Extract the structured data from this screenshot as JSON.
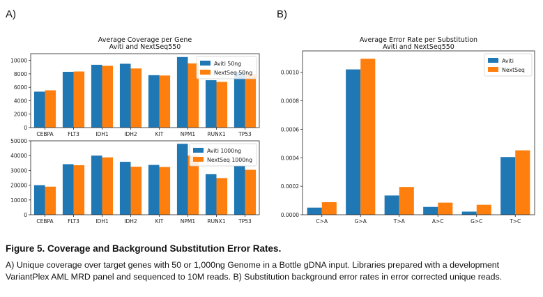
{
  "panels": {
    "a_label": "A)",
    "b_label": "B)"
  },
  "colors": {
    "aviti": "#1f77b4",
    "nextseq": "#ff7f0e"
  },
  "chart_data": [
    {
      "type": "bar",
      "title": "Average Coverage per Gene",
      "subtitle": "Aviti and NextSeq550",
      "categories": [
        "CEBPA",
        "FLT3",
        "IDH1",
        "IDH2",
        "KIT",
        "NPM1",
        "RUNX1",
        "TP53"
      ],
      "series": [
        {
          "name": "Aviti 50ng",
          "values": [
            5350,
            8300,
            9350,
            9500,
            7800,
            10500,
            7050,
            8300
          ]
        },
        {
          "name": "NextSeq 50ng",
          "values": [
            5550,
            8350,
            9200,
            8800,
            7750,
            9550,
            6800,
            7950
          ]
        }
      ],
      "ylim": [
        0,
        11000
      ],
      "yticks": [
        0,
        2000,
        4000,
        6000,
        8000,
        10000
      ],
      "legend": "top-right"
    },
    {
      "type": "bar",
      "categories": [
        "CEBPA",
        "FLT3",
        "IDH1",
        "IDH2",
        "KIT",
        "NPM1",
        "RUNX1",
        "TP53"
      ],
      "series": [
        {
          "name": "Aviti 1000ng",
          "values": [
            20000,
            34200,
            40000,
            35800,
            33700,
            48000,
            27400,
            33000
          ]
        },
        {
          "name": "NextSeq 1000ng",
          "values": [
            19000,
            33500,
            38800,
            32500,
            32300,
            40000,
            24800,
            30400
          ]
        }
      ],
      "ylim": [
        0,
        50000
      ],
      "yticks": [
        0,
        10000,
        20000,
        30000,
        40000,
        50000
      ],
      "legend": "top-right"
    },
    {
      "type": "bar",
      "title": "Average Error Rate per Substitution",
      "subtitle": "Aviti and NextSeq550",
      "categories": [
        "C>A",
        "G>A",
        "T>A",
        "A>C",
        "G>C",
        "T>C"
      ],
      "series": [
        {
          "name": "Aviti",
          "values": [
            5e-05,
            0.00102,
            0.000135,
            5.5e-05,
            2.2e-05,
            0.000405
          ]
        },
        {
          "name": "NextSeq",
          "values": [
            8.8e-05,
            0.001095,
            0.000195,
            8.5e-05,
            7e-05,
            0.000452
          ]
        }
      ],
      "ylim": [
        0,
        0.00115
      ],
      "yticks": [
        0.0,
        0.0002,
        0.0004,
        0.0006,
        0.0008,
        0.001
      ],
      "ytick_labels": [
        "0.0000",
        "0.0002",
        "0.0004",
        "0.0006",
        "0.0008",
        "0.0010"
      ],
      "legend": "top-right"
    }
  ],
  "caption": {
    "title": "Figure 5. Coverage and Background Substitution Error Rates.",
    "body": "A) Unique coverage over target genes with 50 or 1,000ng Genome in a Bottle gDNA input. Libraries prepared with a development VariantPlex AML MRD panel and sequenced to 10M reads. B) Substitution background error rates in error corrected unique reads."
  }
}
